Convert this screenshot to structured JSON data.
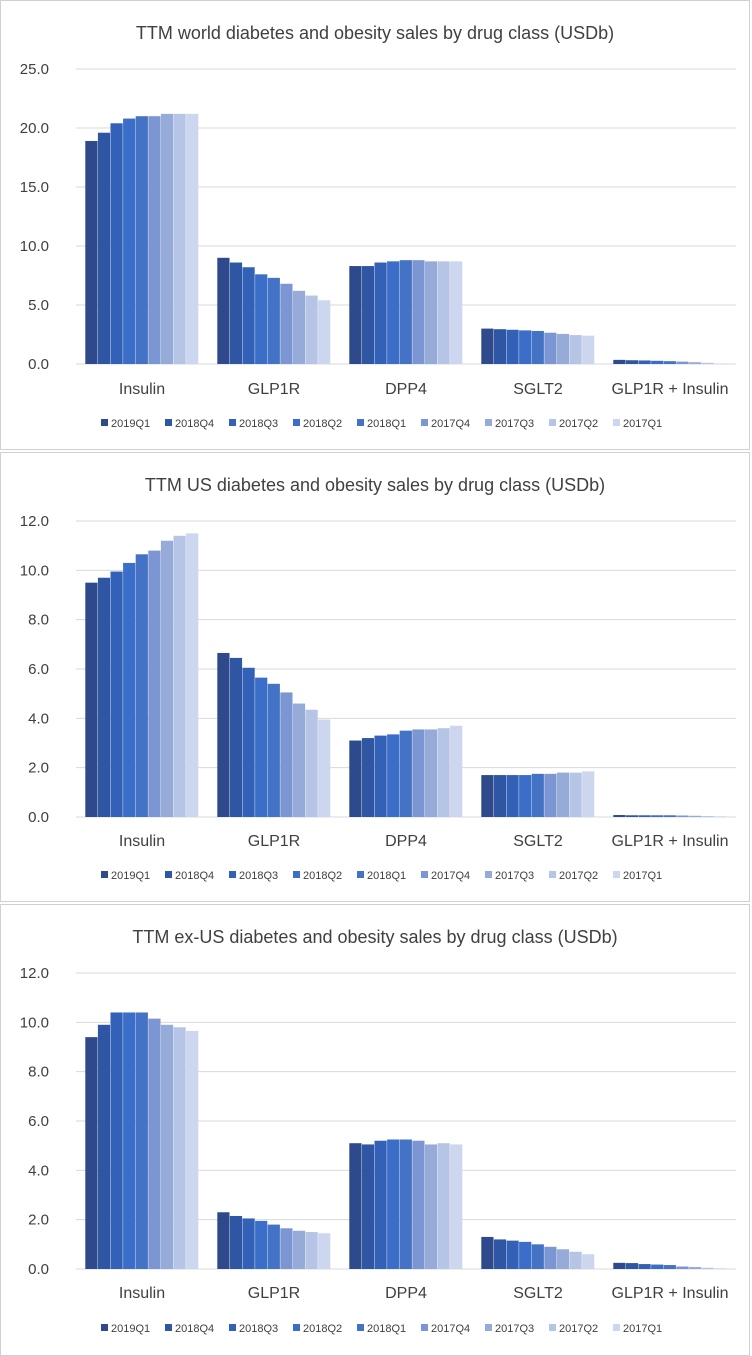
{
  "colors": [
    "#2e4a8c",
    "#2f56a3",
    "#3461b8",
    "#3a6ec8",
    "#4472c4",
    "#7b96d2",
    "#97abd9",
    "#b6c5e6",
    "#ccd6ee"
  ],
  "chart_data": [
    {
      "type": "bar",
      "title": "TTM world diabetes and obesity sales by drug class (USDb)",
      "categories": [
        "Insulin",
        "GLP1R",
        "DPP4",
        "SGLT2",
        "GLP1R + Insulin"
      ],
      "ylim": [
        0,
        25
      ],
      "yticks": [
        "0.0",
        "5.0",
        "10.0",
        "15.0",
        "20.0",
        "25.0"
      ],
      "grid": true,
      "legend_position": "bottom",
      "series": [
        {
          "name": "2019Q1",
          "values": [
            18.9,
            9.0,
            8.3,
            3.0,
            0.35
          ]
        },
        {
          "name": "2018Q4",
          "values": [
            19.6,
            8.6,
            8.3,
            2.95,
            0.32
          ]
        },
        {
          "name": "2018Q3",
          "values": [
            20.4,
            8.2,
            8.6,
            2.9,
            0.3
          ]
        },
        {
          "name": "2018Q2",
          "values": [
            20.8,
            7.6,
            8.7,
            2.85,
            0.27
          ]
        },
        {
          "name": "2018Q1",
          "values": [
            21.0,
            7.3,
            8.8,
            2.8,
            0.24
          ]
        },
        {
          "name": "2017Q4",
          "values": [
            21.0,
            6.8,
            8.8,
            2.65,
            0.2
          ]
        },
        {
          "name": "2017Q3",
          "values": [
            21.2,
            6.2,
            8.7,
            2.55,
            0.15
          ]
        },
        {
          "name": "2017Q2",
          "values": [
            21.2,
            5.8,
            8.7,
            2.45,
            0.1
          ]
        },
        {
          "name": "2017Q1",
          "values": [
            21.2,
            5.4,
            8.7,
            2.4,
            0.05
          ]
        }
      ]
    },
    {
      "type": "bar",
      "title": "TTM US diabetes and obesity sales by drug class (USDb)",
      "categories": [
        "Insulin",
        "GLP1R",
        "DPP4",
        "SGLT2",
        "GLP1R + Insulin"
      ],
      "ylim": [
        0,
        12
      ],
      "yticks": [
        "0.0",
        "2.0",
        "4.0",
        "6.0",
        "8.0",
        "10.0",
        "12.0"
      ],
      "grid": true,
      "legend_position": "bottom",
      "series": [
        {
          "name": "2019Q1",
          "values": [
            9.5,
            6.65,
            3.1,
            1.7,
            0.08
          ]
        },
        {
          "name": "2018Q4",
          "values": [
            9.7,
            6.45,
            3.2,
            1.7,
            0.07
          ]
        },
        {
          "name": "2018Q3",
          "values": [
            9.95,
            6.05,
            3.3,
            1.7,
            0.07
          ]
        },
        {
          "name": "2018Q2",
          "values": [
            10.3,
            5.65,
            3.35,
            1.7,
            0.07
          ]
        },
        {
          "name": "2018Q1",
          "values": [
            10.65,
            5.4,
            3.5,
            1.75,
            0.07
          ]
        },
        {
          "name": "2017Q4",
          "values": [
            10.8,
            5.05,
            3.55,
            1.75,
            0.06
          ]
        },
        {
          "name": "2017Q3",
          "values": [
            11.2,
            4.6,
            3.55,
            1.8,
            0.05
          ]
        },
        {
          "name": "2017Q2",
          "values": [
            11.4,
            4.35,
            3.6,
            1.8,
            0.04
          ]
        },
        {
          "name": "2017Q1",
          "values": [
            11.5,
            3.95,
            3.7,
            1.85,
            0.03
          ]
        }
      ]
    },
    {
      "type": "bar",
      "title": "TTM ex-US diabetes and obesity sales by drug class (USDb)",
      "categories": [
        "Insulin",
        "GLP1R",
        "DPP4",
        "SGLT2",
        "GLP1R + Insulin"
      ],
      "ylim": [
        0,
        12
      ],
      "yticks": [
        "0.0",
        "2.0",
        "4.0",
        "6.0",
        "8.0",
        "10.0",
        "12.0"
      ],
      "grid": true,
      "legend_position": "bottom",
      "series": [
        {
          "name": "2019Q1",
          "values": [
            9.4,
            2.3,
            5.1,
            1.3,
            0.25
          ]
        },
        {
          "name": "2018Q4",
          "values": [
            9.9,
            2.15,
            5.05,
            1.2,
            0.24
          ]
        },
        {
          "name": "2018Q3",
          "values": [
            10.4,
            2.05,
            5.2,
            1.15,
            0.2
          ]
        },
        {
          "name": "2018Q2",
          "values": [
            10.4,
            1.95,
            5.25,
            1.1,
            0.18
          ]
        },
        {
          "name": "2018Q1",
          "values": [
            10.4,
            1.8,
            5.25,
            1.0,
            0.16
          ]
        },
        {
          "name": "2017Q4",
          "values": [
            10.15,
            1.65,
            5.2,
            0.9,
            0.1
          ]
        },
        {
          "name": "2017Q3",
          "values": [
            9.9,
            1.55,
            5.05,
            0.8,
            0.08
          ]
        },
        {
          "name": "2017Q2",
          "values": [
            9.8,
            1.5,
            5.1,
            0.7,
            0.05
          ]
        },
        {
          "name": "2017Q1",
          "values": [
            9.65,
            1.45,
            5.05,
            0.6,
            0.03
          ]
        }
      ]
    }
  ]
}
